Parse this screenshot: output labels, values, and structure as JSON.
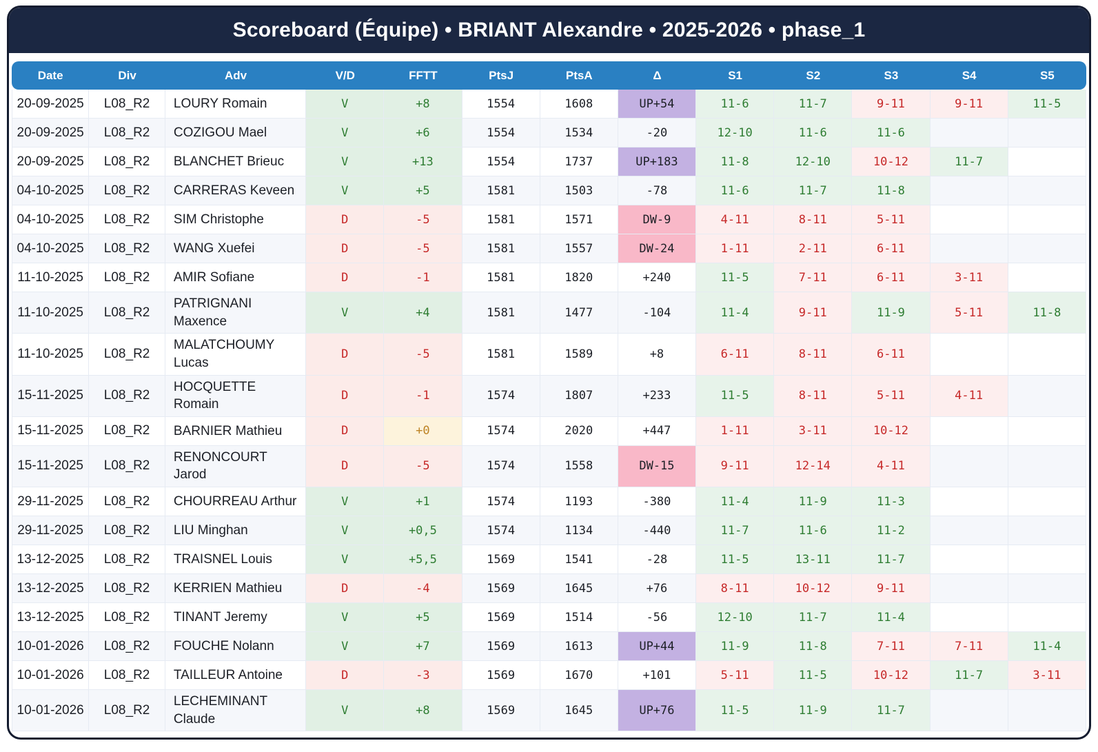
{
  "title": "Scoreboard (Équipe) • BRIANT Alexandre • 2025-2026 • phase_1",
  "colors": {
    "title_bar_bg": "#1b2742",
    "card_border": "#141c30",
    "header_bg": "#2a80c2",
    "header_text": "#ffffff",
    "win_text": "#2e7d32",
    "loss_text": "#c62828",
    "win_cell_bg": "#e1f0e4",
    "loss_cell_bg": "#fcebe9",
    "set_win_bg": "#e7f3ea",
    "set_loss_bg": "#fdeeee",
    "delta_up_bg": "#c3b1e2",
    "delta_down_bg": "#f9b8c8",
    "zero_bg": "#fdf3dc",
    "zero_text": "#bd8324",
    "row_alt_bg": "#f5f7fb",
    "grid": "#e6ebf3"
  },
  "table": {
    "columns": [
      "Date",
      "Div",
      "Adv",
      "V/D",
      "FFTT",
      "PtsJ",
      "PtsA",
      "Δ",
      "S1",
      "S2",
      "S3",
      "S4",
      "S5"
    ],
    "rows": [
      {
        "date": "20-09-2025",
        "div": "L08_R2",
        "adv": "LOURY Romain",
        "vd": "V",
        "fftt": "+8",
        "ptsj": "1554",
        "ptsa": "1608",
        "delta": "UP+54",
        "sets": [
          "11-6",
          "11-7",
          "9-11",
          "9-11",
          "11-5"
        ]
      },
      {
        "date": "20-09-2025",
        "div": "L08_R2",
        "adv": "COZIGOU Mael",
        "vd": "V",
        "fftt": "+6",
        "ptsj": "1554",
        "ptsa": "1534",
        "delta": "-20",
        "sets": [
          "12-10",
          "11-6",
          "11-6"
        ]
      },
      {
        "date": "20-09-2025",
        "div": "L08_R2",
        "adv": "BLANCHET Brieuc",
        "vd": "V",
        "fftt": "+13",
        "ptsj": "1554",
        "ptsa": "1737",
        "delta": "UP+183",
        "sets": [
          "11-8",
          "12-10",
          "10-12",
          "11-7"
        ]
      },
      {
        "date": "04-10-2025",
        "div": "L08_R2",
        "adv": "CARRERAS Keveen",
        "vd": "V",
        "fftt": "+5",
        "ptsj": "1581",
        "ptsa": "1503",
        "delta": "-78",
        "sets": [
          "11-6",
          "11-7",
          "11-8"
        ]
      },
      {
        "date": "04-10-2025",
        "div": "L08_R2",
        "adv": "SIM Christophe",
        "vd": "D",
        "fftt": "-5",
        "ptsj": "1581",
        "ptsa": "1571",
        "delta": "DW-9",
        "sets": [
          "4-11",
          "8-11",
          "5-11"
        ]
      },
      {
        "date": "04-10-2025",
        "div": "L08_R2",
        "adv": "WANG Xuefei",
        "vd": "D",
        "fftt": "-5",
        "ptsj": "1581",
        "ptsa": "1557",
        "delta": "DW-24",
        "sets": [
          "1-11",
          "2-11",
          "6-11"
        ]
      },
      {
        "date": "11-10-2025",
        "div": "L08_R2",
        "adv": "AMIR Sofiane",
        "vd": "D",
        "fftt": "-1",
        "ptsj": "1581",
        "ptsa": "1820",
        "delta": "+240",
        "sets": [
          "11-5",
          "7-11",
          "6-11",
          "3-11"
        ]
      },
      {
        "date": "11-10-2025",
        "div": "L08_R2",
        "adv": "PATRIGNANI\nMaxence",
        "vd": "V",
        "fftt": "+4",
        "ptsj": "1581",
        "ptsa": "1477",
        "delta": "-104",
        "sets": [
          "11-4",
          "9-11",
          "11-9",
          "5-11",
          "11-8"
        ]
      },
      {
        "date": "11-10-2025",
        "div": "L08_R2",
        "adv": "MALATCHOUMY\nLucas",
        "vd": "D",
        "fftt": "-5",
        "ptsj": "1581",
        "ptsa": "1589",
        "delta": "+8",
        "sets": [
          "6-11",
          "8-11",
          "6-11"
        ]
      },
      {
        "date": "15-11-2025",
        "div": "L08_R2",
        "adv": "HOCQUETTE Romain",
        "vd": "D",
        "fftt": "-1",
        "ptsj": "1574",
        "ptsa": "1807",
        "delta": "+233",
        "sets": [
          "11-5",
          "8-11",
          "5-11",
          "4-11"
        ]
      },
      {
        "date": "15-11-2025",
        "div": "L08_R2",
        "adv": "BARNIER Mathieu",
        "vd": "D",
        "fftt": "+0",
        "ptsj": "1574",
        "ptsa": "2020",
        "delta": "+447",
        "sets": [
          "1-11",
          "3-11",
          "10-12"
        ]
      },
      {
        "date": "15-11-2025",
        "div": "L08_R2",
        "adv": "RENONCOURT Jarod",
        "vd": "D",
        "fftt": "-5",
        "ptsj": "1574",
        "ptsa": "1558",
        "delta": "DW-15",
        "sets": [
          "9-11",
          "12-14",
          "4-11"
        ]
      },
      {
        "date": "29-11-2025",
        "div": "L08_R2",
        "adv": "CHOURREAU Arthur",
        "vd": "V",
        "fftt": "+1",
        "ptsj": "1574",
        "ptsa": "1193",
        "delta": "-380",
        "sets": [
          "11-4",
          "11-9",
          "11-3"
        ]
      },
      {
        "date": "29-11-2025",
        "div": "L08_R2",
        "adv": "LIU Minghan",
        "vd": "V",
        "fftt": "+0,5",
        "ptsj": "1574",
        "ptsa": "1134",
        "delta": "-440",
        "sets": [
          "11-7",
          "11-6",
          "11-2"
        ]
      },
      {
        "date": "13-12-2025",
        "div": "L08_R2",
        "adv": "TRAISNEL Louis",
        "vd": "V",
        "fftt": "+5,5",
        "ptsj": "1569",
        "ptsa": "1541",
        "delta": "-28",
        "sets": [
          "11-5",
          "13-11",
          "11-7"
        ]
      },
      {
        "date": "13-12-2025",
        "div": "L08_R2",
        "adv": "KERRIEN Mathieu",
        "vd": "D",
        "fftt": "-4",
        "ptsj": "1569",
        "ptsa": "1645",
        "delta": "+76",
        "sets": [
          "8-11",
          "10-12",
          "9-11"
        ]
      },
      {
        "date": "13-12-2025",
        "div": "L08_R2",
        "adv": "TINANT Jeremy",
        "vd": "V",
        "fftt": "+5",
        "ptsj": "1569",
        "ptsa": "1514",
        "delta": "-56",
        "sets": [
          "12-10",
          "11-7",
          "11-4"
        ]
      },
      {
        "date": "10-01-2026",
        "div": "L08_R2",
        "adv": "FOUCHE Nolann",
        "vd": "V",
        "fftt": "+7",
        "ptsj": "1569",
        "ptsa": "1613",
        "delta": "UP+44",
        "sets": [
          "11-9",
          "11-8",
          "7-11",
          "7-11",
          "11-4"
        ]
      },
      {
        "date": "10-01-2026",
        "div": "L08_R2",
        "adv": "TAILLEUR Antoine",
        "vd": "D",
        "fftt": "-3",
        "ptsj": "1569",
        "ptsa": "1670",
        "delta": "+101",
        "sets": [
          "5-11",
          "11-5",
          "10-12",
          "11-7",
          "3-11"
        ]
      },
      {
        "date": "10-01-2026",
        "div": "L08_R2",
        "adv": "LECHEMINANT\nClaude",
        "vd": "V",
        "fftt": "+8",
        "ptsj": "1569",
        "ptsa": "1645",
        "delta": "UP+76",
        "sets": [
          "11-5",
          "11-9",
          "11-7"
        ]
      }
    ]
  }
}
